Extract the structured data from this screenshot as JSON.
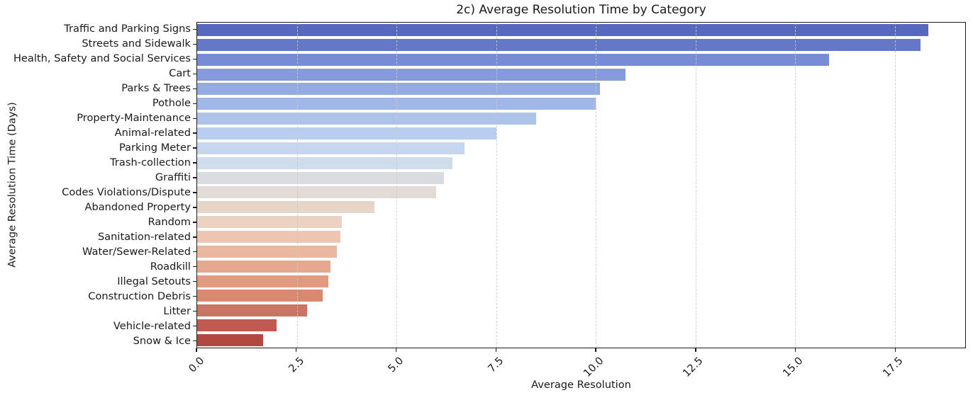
{
  "chart_data": {
    "type": "bar",
    "orientation": "horizontal",
    "title": "2c) Average Resolution Time by Category",
    "xlabel": "Average Resolution",
    "ylabel": "Average Resolution Time (Days)",
    "xlim": [
      0,
      19.27
    ],
    "x_ticks": [
      0,
      2.5,
      5,
      7.5,
      10,
      12.5,
      15,
      17.5
    ],
    "x_tick_labels": [
      "0.0",
      "2.5",
      "5.0",
      "7.5",
      "10.0",
      "12.5",
      "15.0",
      "17.5"
    ],
    "grid": "vertical-dashed",
    "legend": "none",
    "categories": [
      "Traffic and Parking Signs",
      "Streets and Sidewalk",
      "Health, Safety and Social Services",
      "Cart",
      "Parks & Trees",
      "Pothole",
      "Property-Maintenance",
      "Animal-related",
      "Parking Meter",
      "Trash-collection",
      "Graffiti",
      "Codes Violations/Dispute",
      "Abandoned Property",
      "Random",
      "Sanitation-related",
      "Water/Sewer-Related",
      "Roadkill",
      "Illegal Setouts",
      "Construction Debris",
      "Litter",
      "Vehicle-related",
      "Snow & Ice"
    ],
    "values": [
      18.35,
      18.15,
      15.85,
      10.75,
      10.1,
      10.0,
      8.5,
      7.5,
      6.7,
      6.4,
      6.2,
      6.0,
      4.45,
      3.63,
      3.6,
      3.5,
      3.35,
      3.3,
      3.15,
      2.75,
      2.0,
      1.65
    ],
    "bar_colors": [
      "#5669bd",
      "#6379c7",
      "#768cd3",
      "#859bdc",
      "#93aae3",
      "#a0b7e8",
      "#adc3ec",
      "#b9cdee",
      "#c5d6ee",
      "#cfdcec",
      "#d8dce0",
      "#e2dad4",
      "#e6d6ca",
      "#ebd2c3",
      "#edc5b1",
      "#eab8a1",
      "#e6a98f",
      "#e09a7f",
      "#d88a70",
      "#cd7361",
      "#be5a50",
      "#b24744"
    ],
    "spine_color": "#1a1a1a",
    "gridline_color": "#c9c9c9",
    "background_color": "#ffffff"
  }
}
